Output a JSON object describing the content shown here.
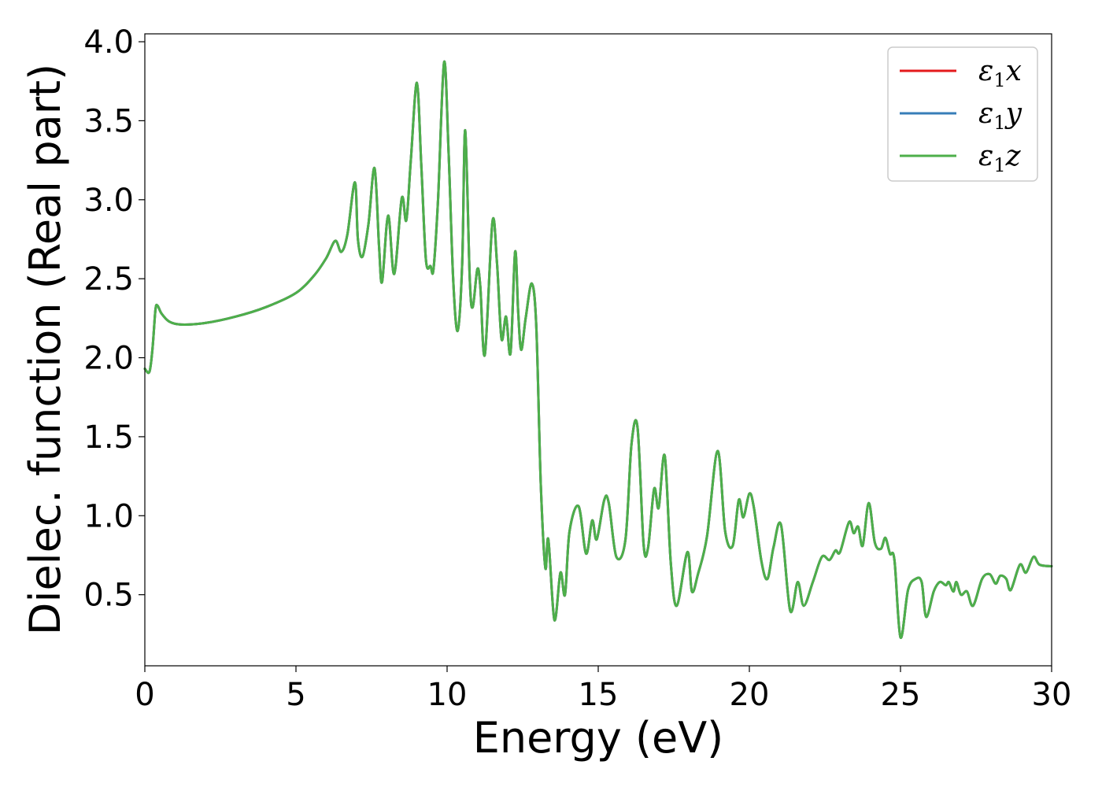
{
  "chart_data": {
    "type": "line",
    "title": "",
    "xlabel": "Energy (eV)",
    "ylabel": "Dielec. function (Real part)",
    "xlim": [
      0,
      30
    ],
    "ylim": [
      0.05,
      4.05
    ],
    "xticks": [
      0,
      5,
      10,
      15,
      20,
      25,
      30
    ],
    "xtick_labels": [
      "0",
      "5",
      "10",
      "15",
      "20",
      "25",
      "30"
    ],
    "yticks": [
      0.5,
      1.0,
      1.5,
      2.0,
      2.5,
      3.0,
      3.5,
      4.0
    ],
    "ytick_labels": [
      "0.5",
      "1.0",
      "1.5",
      "2.0",
      "2.5",
      "3.0",
      "3.5",
      "4.0"
    ],
    "grid": false,
    "legend_position": "top-right",
    "colors": {
      "x": "#e41a1c",
      "y": "#377eb8",
      "z": "#4daf4a"
    },
    "legend": [
      {
        "base": "ε",
        "sub": "1",
        "comp": "x",
        "color": "#e41a1c"
      },
      {
        "base": "ε",
        "sub": "1",
        "comp": "y",
        "color": "#377eb8"
      },
      {
        "base": "ε",
        "sub": "1",
        "comp": "z",
        "color": "#4daf4a"
      }
    ],
    "curve": [
      [
        0.0,
        1.93
      ],
      [
        0.15,
        1.91
      ],
      [
        0.25,
        2.05
      ],
      [
        0.35,
        2.3
      ],
      [
        0.42,
        2.33
      ],
      [
        0.55,
        2.28
      ],
      [
        0.8,
        2.23
      ],
      [
        1.2,
        2.21
      ],
      [
        2.0,
        2.22
      ],
      [
        3.0,
        2.26
      ],
      [
        4.0,
        2.32
      ],
      [
        5.0,
        2.41
      ],
      [
        5.6,
        2.52
      ],
      [
        6.0,
        2.63
      ],
      [
        6.3,
        2.74
      ],
      [
        6.5,
        2.67
      ],
      [
        6.7,
        2.78
      ],
      [
        6.95,
        3.11
      ],
      [
        7.05,
        2.75
      ],
      [
        7.2,
        2.64
      ],
      [
        7.4,
        2.85
      ],
      [
        7.6,
        3.2
      ],
      [
        7.75,
        2.7
      ],
      [
        7.85,
        2.48
      ],
      [
        8.05,
        2.9
      ],
      [
        8.25,
        2.53
      ],
      [
        8.5,
        3.01
      ],
      [
        8.65,
        2.87
      ],
      [
        8.8,
        3.25
      ],
      [
        9.0,
        3.74
      ],
      [
        9.15,
        3.2
      ],
      [
        9.3,
        2.62
      ],
      [
        9.45,
        2.58
      ],
      [
        9.55,
        2.56
      ],
      [
        9.7,
        3.0
      ],
      [
        9.9,
        3.87
      ],
      [
        10.05,
        3.3
      ],
      [
        10.2,
        2.5
      ],
      [
        10.35,
        2.17
      ],
      [
        10.5,
        2.6
      ],
      [
        10.6,
        3.44
      ],
      [
        10.75,
        2.5
      ],
      [
        10.85,
        2.32
      ],
      [
        11.0,
        2.56
      ],
      [
        11.1,
        2.45
      ],
      [
        11.25,
        2.02
      ],
      [
        11.5,
        2.86
      ],
      [
        11.65,
        2.6
      ],
      [
        11.8,
        2.12
      ],
      [
        11.95,
        2.26
      ],
      [
        12.1,
        2.03
      ],
      [
        12.25,
        2.67
      ],
      [
        12.35,
        2.3
      ],
      [
        12.45,
        2.05
      ],
      [
        12.6,
        2.25
      ],
      [
        12.8,
        2.47
      ],
      [
        12.95,
        2.2
      ],
      [
        13.1,
        1.2
      ],
      [
        13.25,
        0.67
      ],
      [
        13.35,
        0.85
      ],
      [
        13.55,
        0.34
      ],
      [
        13.75,
        0.64
      ],
      [
        13.9,
        0.5
      ],
      [
        14.05,
        0.9
      ],
      [
        14.35,
        1.06
      ],
      [
        14.6,
        0.76
      ],
      [
        14.8,
        0.97
      ],
      [
        14.95,
        0.85
      ],
      [
        15.2,
        1.1
      ],
      [
        15.35,
        1.08
      ],
      [
        15.6,
        0.74
      ],
      [
        15.9,
        0.85
      ],
      [
        16.1,
        1.45
      ],
      [
        16.3,
        1.56
      ],
      [
        16.5,
        0.82
      ],
      [
        16.65,
        0.8
      ],
      [
        16.85,
        1.17
      ],
      [
        17.0,
        1.05
      ],
      [
        17.2,
        1.38
      ],
      [
        17.4,
        0.7
      ],
      [
        17.6,
        0.43
      ],
      [
        17.95,
        0.77
      ],
      [
        18.1,
        0.52
      ],
      [
        18.3,
        0.63
      ],
      [
        18.6,
        0.87
      ],
      [
        18.95,
        1.41
      ],
      [
        19.2,
        0.9
      ],
      [
        19.45,
        0.81
      ],
      [
        19.65,
        1.1
      ],
      [
        19.8,
        0.99
      ],
      [
        20.0,
        1.14
      ],
      [
        20.15,
        1.05
      ],
      [
        20.4,
        0.71
      ],
      [
        20.6,
        0.6
      ],
      [
        20.8,
        0.8
      ],
      [
        21.05,
        0.94
      ],
      [
        21.35,
        0.4
      ],
      [
        21.6,
        0.58
      ],
      [
        21.8,
        0.43
      ],
      [
        22.1,
        0.58
      ],
      [
        22.4,
        0.74
      ],
      [
        22.65,
        0.72
      ],
      [
        22.85,
        0.78
      ],
      [
        23.0,
        0.77
      ],
      [
        23.3,
        0.96
      ],
      [
        23.45,
        0.89
      ],
      [
        23.6,
        0.93
      ],
      [
        23.75,
        0.81
      ],
      [
        23.95,
        1.08
      ],
      [
        24.15,
        0.83
      ],
      [
        24.35,
        0.79
      ],
      [
        24.5,
        0.86
      ],
      [
        24.65,
        0.76
      ],
      [
        24.8,
        0.72
      ],
      [
        25.0,
        0.23
      ],
      [
        25.25,
        0.53
      ],
      [
        25.5,
        0.6
      ],
      [
        25.7,
        0.58
      ],
      [
        25.85,
        0.36
      ],
      [
        26.1,
        0.52
      ],
      [
        26.3,
        0.58
      ],
      [
        26.5,
        0.56
      ],
      [
        26.6,
        0.58
      ],
      [
        26.75,
        0.52
      ],
      [
        26.85,
        0.58
      ],
      [
        27.0,
        0.5
      ],
      [
        27.2,
        0.52
      ],
      [
        27.4,
        0.43
      ],
      [
        27.7,
        0.6
      ],
      [
        27.95,
        0.63
      ],
      [
        28.15,
        0.57
      ],
      [
        28.3,
        0.62
      ],
      [
        28.5,
        0.6
      ],
      [
        28.65,
        0.53
      ],
      [
        28.95,
        0.69
      ],
      [
        29.15,
        0.64
      ],
      [
        29.4,
        0.74
      ],
      [
        29.6,
        0.69
      ],
      [
        30.0,
        0.68
      ]
    ]
  }
}
